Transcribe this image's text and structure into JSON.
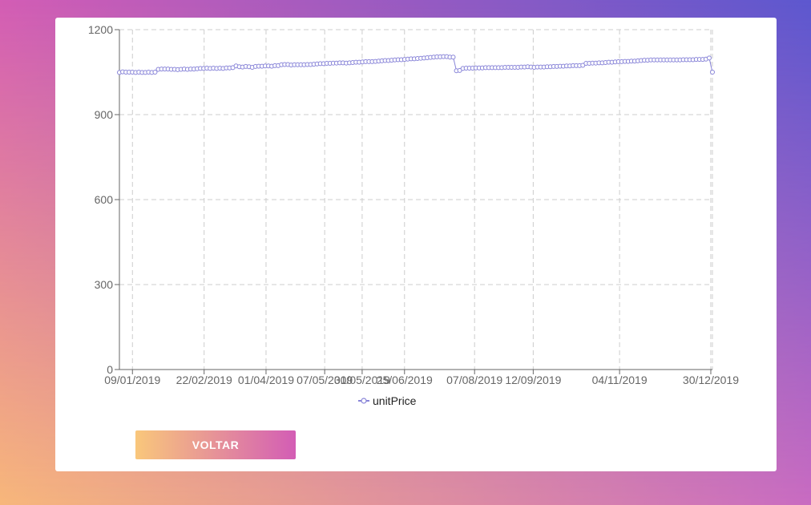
{
  "colors": {
    "bg_top_left": "#d35db5",
    "bg_top_right": "#5d58cf",
    "bg_bottom_left": "#f7b77a",
    "bg_bottom_right": "#c96bc1",
    "series": "#8884d8",
    "grid": "#cccccc",
    "axis": "#666666",
    "button_from": "#f9c77b",
    "button_to": "#d35db5"
  },
  "button": {
    "label": "VOLTAR"
  },
  "chart_data": {
    "type": "line",
    "title": "",
    "xlabel": "",
    "ylabel": "",
    "ylim": [
      0,
      1200
    ],
    "yticks": [
      0,
      300,
      600,
      900,
      1200
    ],
    "x_start": "2019-01-01",
    "x_end": "2019-12-31",
    "xticks": [
      "09/01/2019",
      "22/02/2019",
      "01/04/2019",
      "07/05/2019",
      "30/05/2019",
      "25/06/2019",
      "07/08/2019",
      "12/09/2019",
      "04/11/2019",
      "30/12/2019"
    ],
    "grid": true,
    "legend": "bottom-center",
    "series": [
      {
        "name": "unitPrice",
        "values": [
          1049,
          1051,
          1050,
          1050,
          1050,
          1049,
          1050,
          1049,
          1049,
          1050,
          1049,
          1050,
          1060,
          1061,
          1061,
          1061,
          1060,
          1060,
          1059,
          1060,
          1061,
          1060,
          1061,
          1061,
          1062,
          1063,
          1063,
          1064,
          1063,
          1064,
          1063,
          1064,
          1063,
          1065,
          1065,
          1066,
          1072,
          1069,
          1068,
          1070,
          1069,
          1067,
          1070,
          1071,
          1071,
          1072,
          1072,
          1071,
          1073,
          1073,
          1076,
          1077,
          1077,
          1075,
          1076,
          1076,
          1076,
          1076,
          1077,
          1077,
          1078,
          1079,
          1080,
          1080,
          1081,
          1081,
          1082,
          1082,
          1083,
          1083,
          1082,
          1083,
          1084,
          1085,
          1085,
          1086,
          1087,
          1087,
          1087,
          1088,
          1089,
          1090,
          1091,
          1091,
          1092,
          1093,
          1094,
          1094,
          1095,
          1096,
          1097,
          1097,
          1098,
          1099,
          1100,
          1101,
          1102,
          1103,
          1104,
          1104,
          1105,
          1105,
          1103,
          1103,
          1055,
          1056,
          1063,
          1064,
          1064,
          1064,
          1065,
          1065,
          1065,
          1066,
          1066,
          1066,
          1066,
          1066,
          1066,
          1067,
          1067,
          1067,
          1067,
          1067,
          1068,
          1068,
          1069,
          1068,
          1067,
          1068,
          1068,
          1068,
          1069,
          1069,
          1070,
          1070,
          1071,
          1071,
          1072,
          1072,
          1073,
          1073,
          1073,
          1074,
          1081,
          1081,
          1082,
          1082,
          1083,
          1083,
          1084,
          1085,
          1085,
          1086,
          1087,
          1087,
          1088,
          1088,
          1089,
          1089,
          1090,
          1091,
          1092,
          1092,
          1093,
          1093,
          1093,
          1093,
          1093,
          1093,
          1093,
          1093,
          1093,
          1093,
          1094,
          1094,
          1094,
          1094,
          1095,
          1095,
          1095,
          1096,
          1100,
          1050
        ]
      }
    ]
  }
}
